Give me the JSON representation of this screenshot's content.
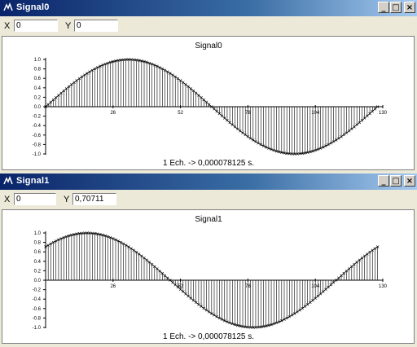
{
  "windows": [
    {
      "title": "Signal0",
      "x_label": "X",
      "x_value": "0",
      "y_label": "Y",
      "y_value": "0",
      "footer": "1 Ech. -> 0,000078125 s."
    },
    {
      "title": "Signal1",
      "x_label": "X",
      "x_value": "0",
      "y_label": "Y",
      "y_value": "0,70711",
      "footer": "1 Ech. -> 0,000078125 s."
    }
  ],
  "buttons": {
    "minimize": "_",
    "maximize": "□",
    "close": "×"
  },
  "chart_data": [
    {
      "type": "line",
      "title": "Signal0",
      "x_ticks": [
        "26",
        "52",
        "78",
        "104",
        "130"
      ],
      "y_ticks": [
        "1.0",
        "0.8",
        "0.6",
        "0.4",
        "0.2",
        "0.0",
        "-0.2",
        "-0.4",
        "-0.6",
        "-0.8",
        "-1.0"
      ],
      "xlim": [
        0,
        130
      ],
      "ylim": [
        -1,
        1
      ],
      "samples": 128,
      "phase_deg": 0,
      "series": [
        {
          "values_formula": "sin(2*pi*n/128)"
        }
      ],
      "markers": "x",
      "stems": true
    },
    {
      "type": "line",
      "title": "Signal1",
      "x_ticks": [
        "26",
        "52",
        "78",
        "104",
        "130"
      ],
      "y_ticks": [
        "1.0",
        "0.8",
        "0.6",
        "0.4",
        "0.2",
        "0.0",
        "-0.2",
        "-0.4",
        "-0.6",
        "-0.8",
        "-1.0"
      ],
      "xlim": [
        0,
        130
      ],
      "ylim": [
        -1,
        1
      ],
      "samples": 128,
      "phase_deg": 45,
      "series": [
        {
          "values_formula": "sin(2*pi*n/128 + pi/4)"
        }
      ],
      "markers": "x",
      "stems": true
    }
  ]
}
